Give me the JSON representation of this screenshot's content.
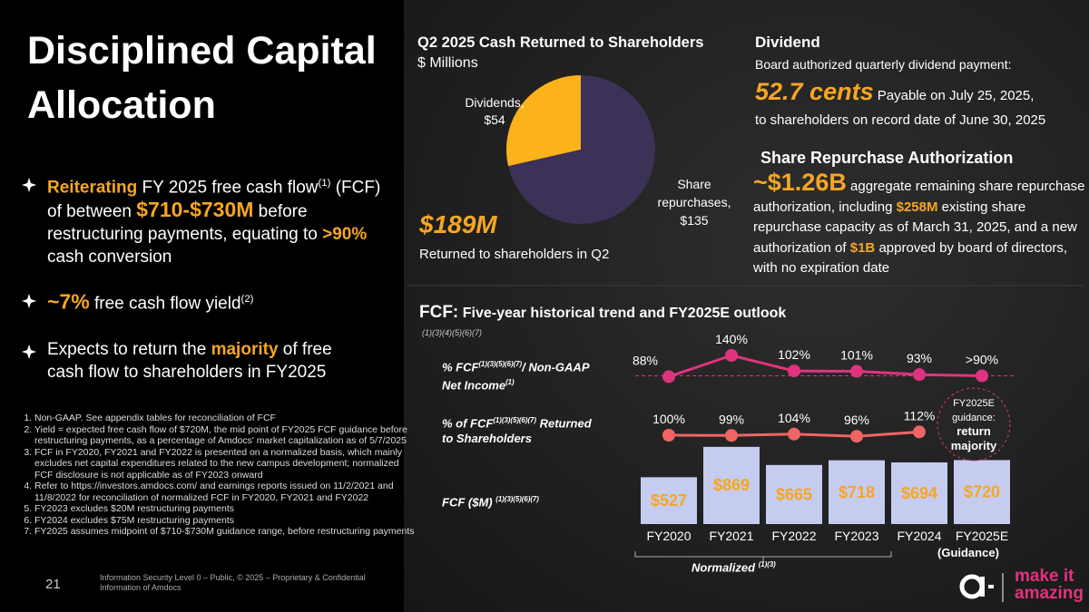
{
  "title": "Disciplined Capital Allocation",
  "bullets": [
    [
      {
        "text": "Reiterating",
        "style": "accent"
      },
      {
        "text": " FY 2025 free cash flow"
      },
      {
        "text": "(1)",
        "style": "sup"
      },
      {
        "text": " (FCF) of between "
      },
      {
        "text": "$710-$730M",
        "style": "big"
      },
      {
        "text": " before restructuring payments, equating to "
      },
      {
        "text": ">90%",
        "style": "accent"
      },
      {
        "text": " cash conversion"
      }
    ],
    [
      {
        "text": "~7%",
        "style": "big"
      },
      {
        "text": " free cash flow yield"
      },
      {
        "text": "(2)",
        "style": "sup"
      }
    ],
    [
      {
        "text": "Expects to return the "
      },
      {
        "text": "majority",
        "style": "accent"
      },
      {
        "text": " of free cash flow to shareholders in FY2025"
      }
    ]
  ],
  "footnotes": [
    "Non-GAAP. See appendix tables for reconciliation of FCF",
    "Yield = expected free cash flow of $720M, the mid point of FY2025 FCF guidance before restructuring payments, as a percentage of Amdocs' market capitalization as of 5/7/2025",
    "FCF in FY2020, FY2021 and FY2022 is presented on a normalized basis, which mainly excludes net capital expenditures related to the new campus development; normalized FCF disclosure is not applicable as of FY2023 onward",
    "Refer to https://investors.amdocs.com/ and earnings reports issued on 11/2/2021 and 11/8/2022 for reconciliation of normalized FCF in FY2020, FY2021 and FY2022",
    "FY2023 excludes $20M restructuring payments",
    "FY2024 excludes $75M restructuring payments",
    "FY2025 assumes midpoint of $710-$730M guidance range, before restructuring payments"
  ],
  "footer": {
    "page": "21",
    "classification": "Information Security Level 0 – Public, © 2025 – Proprietary & Confidential Information of Amdocs",
    "logo": [
      "make it",
      "amazing"
    ]
  },
  "dividend": {
    "title": "Dividend",
    "intro": "Board authorized quarterly dividend payment:",
    "amount": "52.7 cents",
    "payable": "Payable on July 25, 2025,",
    "record": "to shareholders on record date of June 30, 2025"
  },
  "repurchase": {
    "title": "Share Repurchase Authorization",
    "amount": "~$1.26B",
    "segments": [
      {
        "text": " aggregate remaining share repurchase authorization, including "
      },
      {
        "text": "$258M",
        "style": "accent"
      },
      {
        "text": " existing share repurchase capacity as of March 31, 2025, and a new authorization of "
      },
      {
        "text": "$1B",
        "style": "accent"
      },
      {
        "text": " approved by board of directors, with no expiration date"
      }
    ]
  },
  "chart_data": [
    {
      "type": "pie",
      "title": "Q2 2025 Cash Returned to Shareholders",
      "subtitle": "$ Millions",
      "categories": [
        "Dividends,",
        "Share repurchases,"
      ],
      "values": [
        54,
        135
      ],
      "value_labels": [
        "$54",
        "$135"
      ],
      "colors": [
        "#fbb21b",
        "#3c3156"
      ],
      "total": "$189M",
      "caption": "Returned to shareholders in Q2"
    },
    {
      "type": "bar",
      "title": "FCF:",
      "subtitle": "Five-year historical trend and FY2025E outlook",
      "note": "(1)(3)(4)(5)(6)(7)",
      "categories": [
        "FY2020",
        "FY2021",
        "FY2022",
        "FY2023",
        "FY2024",
        "FY2025E"
      ],
      "category_note": "(Guidance)",
      "bracket_label": "Normalized",
      "bracket_note": "(1)(3)",
      "guidance": [
        "FY2025E",
        "guidance:",
        "return",
        "majority"
      ],
      "series": [
        {
          "name_parts": [
            {
              "text": "% FCF"
            },
            {
              "text": "(1)(3)(5)(6)(7)",
              "style": "sup"
            },
            {
              "text": "/ Non-GAAP Net Income"
            },
            {
              "text": "(1)",
              "style": "sup"
            }
          ],
          "type": "line",
          "color": "#e0337f",
          "values": [
            88,
            140,
            102,
            101,
            93,
            90
          ],
          "value_labels": [
            "88%",
            "140%",
            "102%",
            "101%",
            "93%",
            ">90%"
          ]
        },
        {
          "name_parts": [
            {
              "text": "% of FCF"
            },
            {
              "text": "(1)(3)(5)(6)(7)",
              "style": "sup"
            },
            {
              "text": " Returned to Shareholders"
            }
          ],
          "type": "line",
          "color": "#f06464",
          "values": [
            100,
            99,
            104,
            96,
            112,
            null
          ],
          "value_labels": [
            "100%",
            "99%",
            "104%",
            "96%",
            "112%",
            null
          ]
        },
        {
          "name_parts": [
            {
              "text": "FCF ($M) "
            },
            {
              "text": "(1)(3)(5)(6)(7)",
              "style": "sup"
            }
          ],
          "type": "bar",
          "color": "#c6ccef",
          "label_color": "#f5a623",
          "values": [
            527,
            869,
            665,
            718,
            694,
            720
          ],
          "value_labels": [
            "$527",
            "$869",
            "$665",
            "$718",
            "$694",
            "$720"
          ]
        }
      ]
    }
  ]
}
